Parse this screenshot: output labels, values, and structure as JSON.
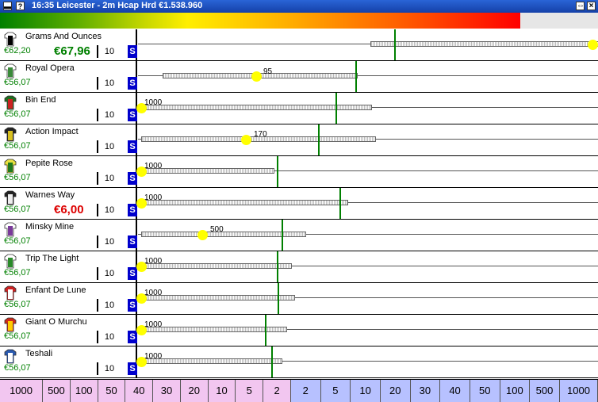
{
  "window": {
    "title": "16:35  Leicester - 2m Hcap Hrd   €1.538.960"
  },
  "race": {
    "progress_fraction": 0.87
  },
  "colors": {
    "back_price": "#008000",
    "lay_price": "#dd0000",
    "s_button": "#0000cc",
    "marker": "#ffff00",
    "ladder_lay": "#f2c6f0",
    "ladder_back": "#b7c1ff"
  },
  "runners": [
    {
      "name": "Grams And Ounces",
      "price": "€62,20",
      "stake": "10",
      "s_label": "S",
      "bet_price": "€67,96",
      "bet_type": "back",
      "marker_label": "",
      "silk_icon": "star-silk-icon",
      "silk": [
        "#ffffff",
        "#000000"
      ]
    },
    {
      "name": "Royal Opera",
      "price": "€56,07",
      "stake": "10",
      "s_label": "S",
      "bet_price": "",
      "bet_type": "",
      "marker_label": "95",
      "silk_icon": "white-green-silk-icon",
      "silk": [
        "#ffffff",
        "#3a8a3a"
      ]
    },
    {
      "name": "Bin End",
      "price": "€56,07",
      "stake": "10",
      "s_label": "S",
      "bet_price": "",
      "bet_type": "",
      "marker_label": "1000",
      "silk_icon": "green-red-silk-icon",
      "silk": [
        "#1f6e1f",
        "#cc2222"
      ]
    },
    {
      "name": "Action Impact",
      "price": "€56,07",
      "stake": "10",
      "s_label": "S",
      "bet_price": "",
      "bet_type": "",
      "marker_label": "170",
      "silk_icon": "black-yellow-silk-icon",
      "silk": [
        "#222222",
        "#d8c020"
      ]
    },
    {
      "name": "Pepite Rose",
      "price": "€56,07",
      "stake": "10",
      "s_label": "S",
      "bet_price": "",
      "bet_type": "",
      "marker_label": "1000",
      "silk_icon": "yellow-green-silk-icon",
      "silk": [
        "#e8e040",
        "#1e7a1e"
      ]
    },
    {
      "name": "Warnes Way",
      "price": "€56,07",
      "stake": "10",
      "s_label": "S",
      "bet_price": "€6,00",
      "bet_type": "lay",
      "marker_label": "1000",
      "silk_icon": "black-white-silk-icon",
      "silk": [
        "#222222",
        "#eeeeee"
      ]
    },
    {
      "name": "Minsky Mine",
      "price": "€56,07",
      "stake": "10",
      "s_label": "S",
      "bet_price": "",
      "bet_type": "",
      "marker_label": "500",
      "silk_icon": "purple-cross-silk-icon",
      "silk": [
        "#ffffff",
        "#7a3a9a"
      ]
    },
    {
      "name": "Trip The Light",
      "price": "€56,07",
      "stake": "10",
      "s_label": "S",
      "bet_price": "",
      "bet_type": "",
      "marker_label": "1000",
      "silk_icon": "green-stripe-silk-icon",
      "silk": [
        "#ffffff",
        "#2a8a2a"
      ]
    },
    {
      "name": "Enfant De Lune",
      "price": "€56,07",
      "stake": "10",
      "s_label": "S",
      "bet_price": "",
      "bet_type": "",
      "marker_label": "1000",
      "silk_icon": "red-white-silk-icon",
      "silk": [
        "#cc2222",
        "#ffffff"
      ]
    },
    {
      "name": "Giant O Murchu",
      "price": "€56,07",
      "stake": "10",
      "s_label": "S",
      "bet_price": "",
      "bet_type": "",
      "marker_label": "1000",
      "silk_icon": "red-silk-icon",
      "silk": [
        "#cc2a1a",
        "#ffcc00"
      ]
    },
    {
      "name": "Teshali",
      "price": "€56,07",
      "stake": "10",
      "s_label": "S",
      "bet_price": "",
      "bet_type": "",
      "marker_label": "1000",
      "silk_icon": "blue-white-silk-icon",
      "silk": [
        "#2a5ab0",
        "#ffffff"
      ]
    }
  ],
  "ladder": [
    {
      "label": "1000",
      "side": "lay"
    },
    {
      "label": "500",
      "side": "lay"
    },
    {
      "label": "100",
      "side": "lay"
    },
    {
      "label": "50",
      "side": "lay"
    },
    {
      "label": "40",
      "side": "lay"
    },
    {
      "label": "30",
      "side": "lay"
    },
    {
      "label": "20",
      "side": "lay"
    },
    {
      "label": "10",
      "side": "lay"
    },
    {
      "label": "5",
      "side": "lay"
    },
    {
      "label": "2",
      "side": "lay"
    },
    {
      "label": "2",
      "side": "back"
    },
    {
      "label": "5",
      "side": "back"
    },
    {
      "label": "10",
      "side": "back"
    },
    {
      "label": "20",
      "side": "back"
    },
    {
      "label": "30",
      "side": "back"
    },
    {
      "label": "40",
      "side": "back"
    },
    {
      "label": "50",
      "side": "back"
    },
    {
      "label": "100",
      "side": "back"
    },
    {
      "label": "500",
      "side": "back"
    },
    {
      "label": "1000",
      "side": "back"
    }
  ]
}
